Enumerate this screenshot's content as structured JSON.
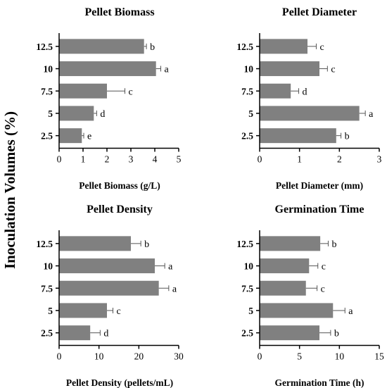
{
  "figure": {
    "ylabel": "Inoculation Volumes (%)"
  },
  "chart_data": [
    {
      "type": "bar",
      "orientation": "horizontal",
      "title": "Pellet Biomass",
      "xlabel": "Pellet Biomass (g/L)",
      "categories": [
        "12.5",
        "10",
        "7.5",
        "5",
        "2.5"
      ],
      "values": [
        3.55,
        4.05,
        2.0,
        1.45,
        0.95
      ],
      "errors": [
        0.1,
        0.2,
        0.75,
        0.12,
        0.08
      ],
      "letters": [
        "b",
        "a",
        "c",
        "d",
        "e"
      ],
      "xlim": [
        0,
        5
      ],
      "xticks": [
        "0",
        "1",
        "2",
        "3",
        "4",
        "5"
      ],
      "bar_color": "#808080"
    },
    {
      "type": "bar",
      "orientation": "horizontal",
      "title": "Pellet Diameter",
      "xlabel": "Pellet Diameter (mm)",
      "categories": [
        "12.5",
        "10",
        "7.5",
        "5",
        "2.5"
      ],
      "values": [
        1.2,
        1.5,
        0.78,
        2.5,
        1.92
      ],
      "errors": [
        0.22,
        0.2,
        0.2,
        0.15,
        0.12
      ],
      "letters": [
        "c",
        "c",
        "d",
        "a",
        "b"
      ],
      "xlim": [
        0,
        3
      ],
      "xticks": [
        "0",
        "1",
        "2",
        "3"
      ],
      "bar_color": "#808080"
    },
    {
      "type": "bar",
      "orientation": "horizontal",
      "title": "Pellet Density",
      "xlabel": "Pellet Density (pellets/mL)",
      "categories": [
        "12.5",
        "10",
        "7.5",
        "5",
        "2.5"
      ],
      "values": [
        18.0,
        24.0,
        25.0,
        12.0,
        7.8
      ],
      "errors": [
        2.5,
        2.5,
        2.5,
        1.5,
        2.5
      ],
      "letters": [
        "b",
        "a",
        "a",
        "c",
        "d"
      ],
      "xlim": [
        0,
        30
      ],
      "xticks": [
        "0",
        "10",
        "20",
        "30"
      ],
      "bar_color": "#808080"
    },
    {
      "type": "bar",
      "orientation": "horizontal",
      "title": "Germination Time",
      "xlabel": "Germination Time (h)",
      "categories": [
        "12.5",
        "10",
        "7.5",
        "5",
        "2.5"
      ],
      "values": [
        7.6,
        6.2,
        5.8,
        9.2,
        7.5
      ],
      "errors": [
        1.0,
        1.1,
        1.4,
        1.5,
        1.4
      ],
      "letters": [
        "b",
        "c",
        "c",
        "a",
        "b"
      ],
      "xlim": [
        0,
        15
      ],
      "xticks": [
        "0",
        "5",
        "10",
        "15"
      ],
      "bar_color": "#808080"
    }
  ]
}
